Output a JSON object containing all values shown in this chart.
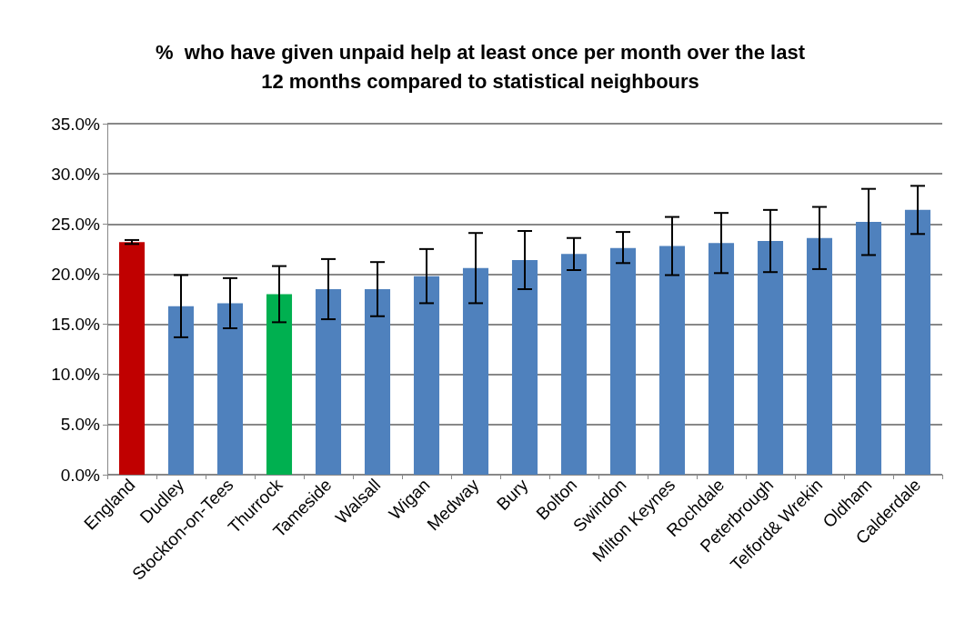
{
  "chart_data": {
    "type": "bar",
    "title": "%  who have given unpaid help at least once per month over the last\n12 months compared to statistical neighbours",
    "categories": [
      "England",
      "Dudley",
      "Stockton-on-Tees",
      "Thurrock",
      "Tameside",
      "Walsall",
      "Wigan",
      "Medway",
      "Bury",
      "Bolton",
      "Swindon",
      "Milton Keynes",
      "Rochdale",
      "Peterbrough",
      "Telford& Wrekin",
      "Oldham",
      "Calderdale"
    ],
    "values": [
      23.2,
      16.8,
      17.1,
      18.0,
      18.5,
      18.5,
      19.8,
      20.6,
      21.4,
      22.0,
      22.6,
      22.8,
      23.1,
      23.3,
      23.6,
      25.2,
      26.4
    ],
    "colors": [
      "#c00000",
      "#4f81bd",
      "#4f81bd",
      "#00b050",
      "#4f81bd",
      "#4f81bd",
      "#4f81bd",
      "#4f81bd",
      "#4f81bd",
      "#4f81bd",
      "#4f81bd",
      "#4f81bd",
      "#4f81bd",
      "#4f81bd",
      "#4f81bd",
      "#4f81bd",
      "#4f81bd"
    ],
    "errors": [
      [
        23.0,
        23.4
      ],
      [
        13.7,
        19.9
      ],
      [
        14.6,
        19.6
      ],
      [
        15.2,
        20.8
      ],
      [
        15.5,
        21.5
      ],
      [
        15.8,
        21.2
      ],
      [
        17.1,
        22.5
      ],
      [
        17.1,
        24.1
      ],
      [
        18.5,
        24.3
      ],
      [
        20.4,
        23.6
      ],
      [
        21.1,
        24.2
      ],
      [
        19.9,
        25.7
      ],
      [
        20.1,
        26.1
      ],
      [
        20.2,
        26.4
      ],
      [
        20.5,
        26.7
      ],
      [
        21.9,
        28.5
      ],
      [
        24.0,
        28.8
      ]
    ],
    "ylim": [
      0,
      35
    ],
    "yticks": [
      {
        "value": 0,
        "label": "0.0%"
      },
      {
        "value": 5,
        "label": "5.0%"
      },
      {
        "value": 10,
        "label": "10.0%"
      },
      {
        "value": 15,
        "label": "15.0%"
      },
      {
        "value": 20,
        "label": "20.0%"
      },
      {
        "value": 25,
        "label": "25.0%"
      },
      {
        "value": 30,
        "label": "30.0%"
      },
      {
        "value": 35,
        "label": "35.0%"
      }
    ],
    "grid": "y"
  }
}
